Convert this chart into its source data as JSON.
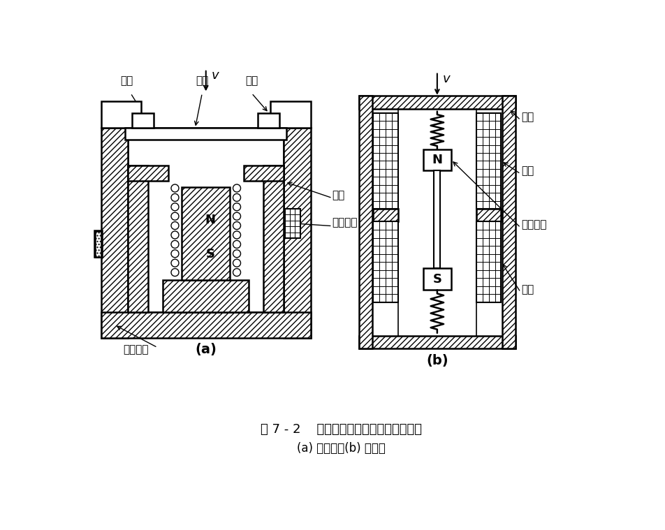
{
  "title_main": "图 7 - 2    恒磁通式磁电传感器结构原理图",
  "title_sub": "(a) 动圈式；(b) 动铁式",
  "label_a": "(a)",
  "label_b": "(b)",
  "fig_bg": "#ffffff",
  "lw_main": 1.8,
  "lw_thin": 0.8,
  "hatch_angle": "////",
  "font_size_label": 11,
  "font_size_caption": 13,
  "font_size_sub": 12
}
